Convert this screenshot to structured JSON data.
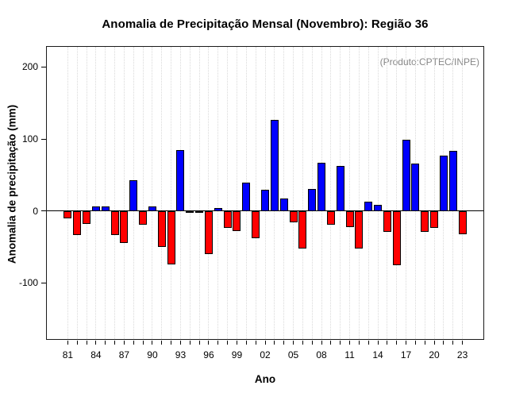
{
  "chart_data": {
    "type": "bar",
    "title": "Anomalia de Precipitação Mensal (Novembro): Região 36",
    "xlabel": "Ano",
    "ylabel": "Anomalia de precipitação (mm)",
    "annotation": "(Produto:CPTEC/INPE)",
    "years": [
      1981,
      1982,
      1983,
      1984,
      1985,
      1986,
      1987,
      1988,
      1989,
      1990,
      1991,
      1992,
      1993,
      1994,
      1995,
      1996,
      1997,
      1998,
      1999,
      2000,
      2001,
      2002,
      2003,
      2004,
      2005,
      2006,
      2007,
      2008,
      2009,
      2010,
      2011,
      2012,
      2013,
      2014,
      2015,
      2016,
      2017,
      2018,
      2019,
      2020,
      2021,
      2022,
      2023
    ],
    "values": [
      -10,
      -33,
      -18,
      6,
      6,
      -33,
      -45,
      43,
      -19,
      6,
      -50,
      -74,
      85,
      -3,
      -1,
      -60,
      4,
      -24,
      -28,
      39,
      -38,
      29,
      126,
      17,
      -16,
      -52,
      30,
      67,
      -19,
      63,
      -22,
      -52,
      13,
      9,
      -29,
      -75,
      99,
      66,
      -29,
      -23,
      77,
      83,
      -32
    ],
    "x_tick_labels": [
      "81",
      "84",
      "87",
      "90",
      "93",
      "96",
      "99",
      "02",
      "05",
      "08",
      "11",
      "14",
      "17",
      "20",
      "23"
    ],
    "x_tick_label_every": 3,
    "yticks": [
      200,
      100,
      0,
      -100
    ],
    "ylim": [
      -178,
      228
    ],
    "grid": "vertical-dotted",
    "legend_position": "none",
    "colors": {
      "positive": "#0000ff",
      "negative": "#ff0000",
      "bar_border": "#000000",
      "grid": "#d9d9d9",
      "zero_line": "#000000",
      "axis": "#000000",
      "annotation": "#878787",
      "background": "#ffffff"
    }
  }
}
